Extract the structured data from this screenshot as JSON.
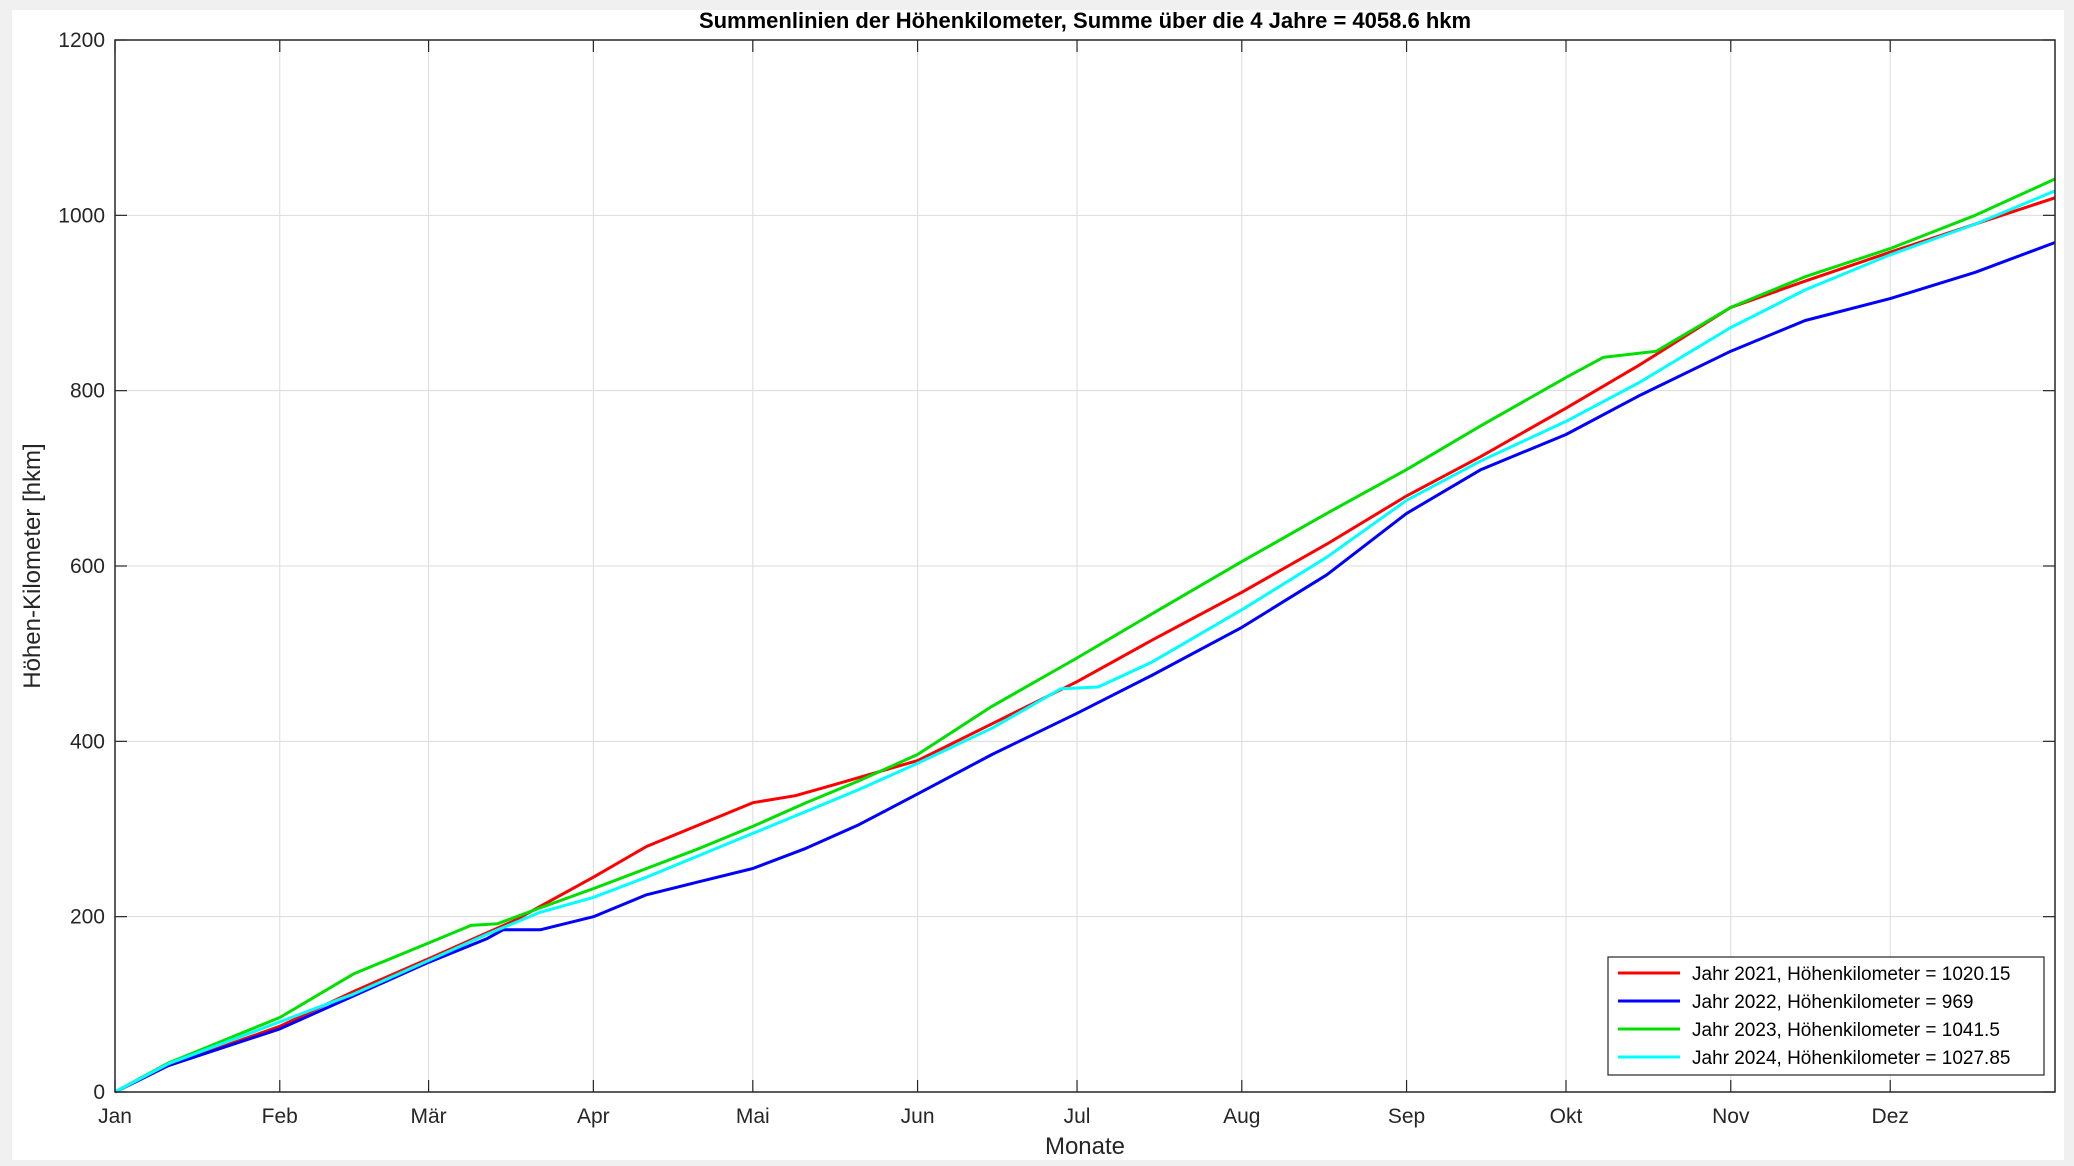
{
  "chart_data": {
    "type": "line",
    "title": "Summenlinien der Höhenkilometer, Summe über die 4 Jahre = 4058.6 hkm",
    "xlabel": "Monate",
    "ylabel": "Höhen-Kilometer [hkm]",
    "ylim": [
      0,
      1200
    ],
    "yticks": [
      "0",
      "200",
      "400",
      "600",
      "800",
      "1000",
      "1200"
    ],
    "xlim": [
      0,
      365
    ],
    "xticks": [
      {
        "day": 0,
        "label": "Jan"
      },
      {
        "day": 31,
        "label": "Feb"
      },
      {
        "day": 59,
        "label": "Mär"
      },
      {
        "day": 90,
        "label": "Apr"
      },
      {
        "day": 120,
        "label": "Mai"
      },
      {
        "day": 151,
        "label": "Jun"
      },
      {
        "day": 181,
        "label": "Jul"
      },
      {
        "day": 212,
        "label": "Aug"
      },
      {
        "day": 243,
        "label": "Sep"
      },
      {
        "day": 273,
        "label": "Okt"
      },
      {
        "day": 304,
        "label": "Nov"
      },
      {
        "day": 334,
        "label": "Dez"
      }
    ],
    "grid": true,
    "legend_position": "bottom-right",
    "series": [
      {
        "name": "Jahr 2021, Höhenkilometer = 1020.15",
        "color": "#ff0000",
        "points": [
          [
            0,
            0
          ],
          [
            10,
            30
          ],
          [
            31,
            75
          ],
          [
            45,
            115
          ],
          [
            59,
            152
          ],
          [
            75,
            195
          ],
          [
            90,
            245
          ],
          [
            100,
            280
          ],
          [
            110,
            305
          ],
          [
            120,
            330
          ],
          [
            128,
            338
          ],
          [
            135,
            350
          ],
          [
            151,
            378
          ],
          [
            165,
            420
          ],
          [
            181,
            468
          ],
          [
            195,
            515
          ],
          [
            212,
            570
          ],
          [
            228,
            625
          ],
          [
            243,
            680
          ],
          [
            257,
            725
          ],
          [
            273,
            780
          ],
          [
            287,
            830
          ],
          [
            304,
            895
          ],
          [
            318,
            925
          ],
          [
            334,
            958
          ],
          [
            350,
            990
          ],
          [
            365,
            1020
          ]
        ]
      },
      {
        "name": "Jahr 2022, Höhenkilometer = 969",
        "color": "#0000ff",
        "points": [
          [
            0,
            0
          ],
          [
            10,
            30
          ],
          [
            31,
            72
          ],
          [
            45,
            110
          ],
          [
            59,
            148
          ],
          [
            70,
            175
          ],
          [
            73,
            185
          ],
          [
            80,
            185
          ],
          [
            90,
            200
          ],
          [
            100,
            225
          ],
          [
            110,
            240
          ],
          [
            120,
            255
          ],
          [
            130,
            278
          ],
          [
            140,
            305
          ],
          [
            151,
            340
          ],
          [
            165,
            385
          ],
          [
            181,
            432
          ],
          [
            195,
            475
          ],
          [
            212,
            530
          ],
          [
            228,
            590
          ],
          [
            243,
            660
          ],
          [
            257,
            710
          ],
          [
            273,
            750
          ],
          [
            287,
            795
          ],
          [
            304,
            845
          ],
          [
            318,
            880
          ],
          [
            334,
            905
          ],
          [
            350,
            935
          ],
          [
            365,
            969
          ]
        ]
      },
      {
        "name": "Jahr 2023, Höhenkilometer = 1041.5",
        "color": "#00e000",
        "points": [
          [
            0,
            0
          ],
          [
            10,
            33
          ],
          [
            31,
            85
          ],
          [
            45,
            135
          ],
          [
            59,
            170
          ],
          [
            67,
            190
          ],
          [
            72,
            192
          ],
          [
            80,
            210
          ],
          [
            90,
            232
          ],
          [
            100,
            255
          ],
          [
            110,
            278
          ],
          [
            120,
            303
          ],
          [
            130,
            330
          ],
          [
            140,
            355
          ],
          [
            151,
            385
          ],
          [
            165,
            440
          ],
          [
            181,
            495
          ],
          [
            195,
            545
          ],
          [
            212,
            605
          ],
          [
            228,
            660
          ],
          [
            243,
            710
          ],
          [
            257,
            760
          ],
          [
            273,
            815
          ],
          [
            280,
            838
          ],
          [
            290,
            845
          ],
          [
            304,
            895
          ],
          [
            318,
            930
          ],
          [
            334,
            962
          ],
          [
            350,
            1000
          ],
          [
            365,
            1041.5
          ]
        ]
      },
      {
        "name": "Jahr 2024, Höhenkilometer = 1027.85",
        "color": "#00ffff",
        "points": [
          [
            0,
            0
          ],
          [
            10,
            32
          ],
          [
            31,
            80
          ],
          [
            45,
            112
          ],
          [
            59,
            150
          ],
          [
            70,
            180
          ],
          [
            80,
            205
          ],
          [
            90,
            222
          ],
          [
            100,
            245
          ],
          [
            110,
            270
          ],
          [
            120,
            295
          ],
          [
            130,
            320
          ],
          [
            140,
            345
          ],
          [
            151,
            375
          ],
          [
            165,
            415
          ],
          [
            178,
            460
          ],
          [
            185,
            462
          ],
          [
            195,
            490
          ],
          [
            212,
            550
          ],
          [
            228,
            610
          ],
          [
            243,
            675
          ],
          [
            257,
            720
          ],
          [
            273,
            765
          ],
          [
            287,
            810
          ],
          [
            304,
            872
          ],
          [
            318,
            915
          ],
          [
            334,
            955
          ],
          [
            350,
            990
          ],
          [
            365,
            1027.85
          ]
        ]
      }
    ]
  }
}
